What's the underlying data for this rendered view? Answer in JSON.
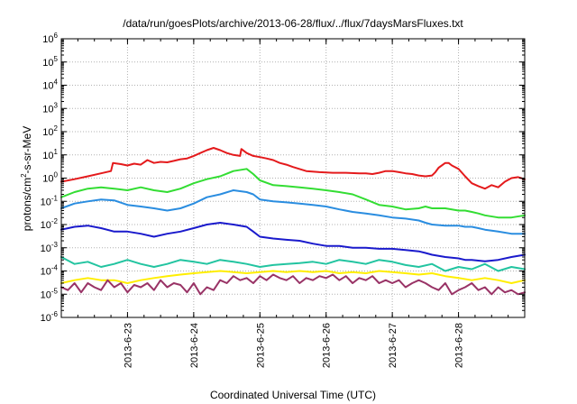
{
  "chart_data": {
    "type": "line",
    "title": "/data/run/goesPlots/archive/2013-06-28/flux/../flux/7daysMarsFluxes.txt",
    "xlabel": "Coordinated Universal Time (UTC)",
    "ylabel": "protons/cm²-s-sr-MeV",
    "ylabel_base": "protons/cm",
    "ylabel_sup": "2",
    "ylabel_rest": "-s-sr-MeV",
    "x_start": "2013-06-22 00:00",
    "xlim_days": [
      0,
      7
    ],
    "yscale": "log",
    "ylim": [
      1e-06,
      1000000.0
    ],
    "y_ticks": [
      {
        "base": "10",
        "exp": "-6",
        "value": -6
      },
      {
        "base": "10",
        "exp": "-5",
        "value": -5
      },
      {
        "base": "10",
        "exp": "-4",
        "value": -4
      },
      {
        "base": "10",
        "exp": "-3",
        "value": -3
      },
      {
        "base": "10",
        "exp": "-2",
        "value": -2
      },
      {
        "base": "10",
        "exp": "-1",
        "value": -1
      },
      {
        "base": "10",
        "exp": "0",
        "value": 0
      },
      {
        "base": "10",
        "exp": "1",
        "value": 1
      },
      {
        "base": "10",
        "exp": "2",
        "value": 2
      },
      {
        "base": "10",
        "exp": "3",
        "value": 3
      },
      {
        "base": "10",
        "exp": "4",
        "value": 4
      },
      {
        "base": "10",
        "exp": "5",
        "value": 5
      },
      {
        "base": "10",
        "exp": "6",
        "value": 6
      }
    ],
    "x_ticks": [
      {
        "label": "2013-6-23",
        "day": 1
      },
      {
        "label": "2013-6-24",
        "day": 2
      },
      {
        "label": "2013-6-25",
        "day": 3
      },
      {
        "label": "2013-6-26",
        "day": 4
      },
      {
        "label": "2013-6-27",
        "day": 5
      },
      {
        "label": "2013-6-28",
        "day": 6
      }
    ],
    "grid": true,
    "legend": "none",
    "series": [
      {
        "color": "#e41a1c",
        "x": [
          0,
          0.2,
          0.4,
          0.6,
          0.75,
          0.78,
          0.9,
          1.0,
          1.1,
          1.2,
          1.3,
          1.4,
          1.5,
          1.6,
          1.7,
          1.8,
          1.9,
          2.0,
          2.1,
          2.2,
          2.3,
          2.4,
          2.5,
          2.6,
          2.7,
          2.72,
          2.8,
          2.9,
          3.0,
          3.1,
          3.2,
          3.3,
          3.4,
          3.5,
          3.7,
          3.9,
          4.1,
          4.3,
          4.5,
          4.6,
          4.7,
          4.8,
          4.9,
          5.0,
          5.1,
          5.2,
          5.3,
          5.4,
          5.5,
          5.6,
          5.65,
          5.7,
          5.8,
          5.85,
          5.9,
          6.0,
          6.1,
          6.2,
          6.3,
          6.4,
          6.5,
          6.6,
          6.7,
          6.8,
          6.9,
          7.0
        ],
        "y": [
          0.7,
          0.9,
          1.2,
          1.6,
          2.0,
          4.5,
          4.0,
          3.5,
          4.2,
          3.8,
          6.0,
          4.5,
          5.0,
          4.8,
          5.5,
          6.5,
          7.0,
          9.0,
          12,
          16,
          20,
          16,
          12,
          10,
          9,
          18,
          12,
          9,
          8,
          7,
          6,
          4.5,
          3.8,
          3.0,
          2.0,
          1.8,
          1.7,
          1.7,
          1.6,
          1.6,
          1.5,
          1.7,
          2.0,
          2.0,
          1.8,
          1.6,
          1.5,
          1.3,
          1.2,
          1.3,
          1.8,
          2.8,
          4.5,
          4.5,
          3.5,
          2.5,
          1.2,
          0.6,
          0.45,
          0.35,
          0.5,
          0.4,
          0.7,
          1.0,
          1.1,
          0.9
        ]
      },
      {
        "color": "#33dd33",
        "x": [
          0,
          0.2,
          0.4,
          0.6,
          0.8,
          1.0,
          1.2,
          1.4,
          1.6,
          1.8,
          2.0,
          2.2,
          2.4,
          2.6,
          2.8,
          2.9,
          3.0,
          3.2,
          3.4,
          3.6,
          3.8,
          4.0,
          4.2,
          4.4,
          4.6,
          4.8,
          5.0,
          5.2,
          5.4,
          5.5,
          5.6,
          5.8,
          6.0,
          6.1,
          6.2,
          6.3,
          6.4,
          6.6,
          6.8,
          7.0
        ],
        "y": [
          0.15,
          0.25,
          0.35,
          0.4,
          0.35,
          0.3,
          0.4,
          0.3,
          0.25,
          0.35,
          0.6,
          0.9,
          1.2,
          2.0,
          2.5,
          1.5,
          0.8,
          0.5,
          0.45,
          0.4,
          0.35,
          0.3,
          0.25,
          0.2,
          0.12,
          0.07,
          0.06,
          0.045,
          0.05,
          0.06,
          0.05,
          0.05,
          0.04,
          0.04,
          0.035,
          0.03,
          0.025,
          0.02,
          0.02,
          0.025
        ]
      },
      {
        "color": "#2a8de0",
        "x": [
          0,
          0.2,
          0.4,
          0.6,
          0.8,
          1.0,
          1.2,
          1.4,
          1.6,
          1.8,
          2.0,
          2.2,
          2.4,
          2.6,
          2.8,
          2.9,
          3.0,
          3.2,
          3.4,
          3.6,
          3.8,
          4.0,
          4.2,
          4.4,
          4.6,
          4.8,
          5.0,
          5.2,
          5.4,
          5.5,
          5.6,
          5.8,
          6.0,
          6.1,
          6.2,
          6.3,
          6.4,
          6.6,
          6.8,
          7.0
        ],
        "y": [
          0.05,
          0.08,
          0.1,
          0.12,
          0.11,
          0.07,
          0.06,
          0.05,
          0.04,
          0.05,
          0.08,
          0.15,
          0.2,
          0.3,
          0.25,
          0.2,
          0.12,
          0.1,
          0.09,
          0.08,
          0.07,
          0.06,
          0.045,
          0.035,
          0.03,
          0.025,
          0.02,
          0.018,
          0.015,
          0.012,
          0.01,
          0.009,
          0.009,
          0.008,
          0.008,
          0.007,
          0.006,
          0.005,
          0.004,
          0.004
        ]
      },
      {
        "color": "#1a1acc",
        "x": [
          0,
          0.2,
          0.4,
          0.6,
          0.8,
          1.0,
          1.2,
          1.4,
          1.6,
          1.8,
          2.0,
          2.2,
          2.4,
          2.6,
          2.8,
          2.9,
          3.0,
          3.2,
          3.4,
          3.6,
          3.8,
          4.0,
          4.2,
          4.4,
          4.6,
          4.8,
          5.0,
          5.2,
          5.4,
          5.5,
          5.6,
          5.8,
          6.0,
          6.1,
          6.2,
          6.3,
          6.4,
          6.6,
          6.8,
          7.0
        ],
        "y": [
          0.006,
          0.008,
          0.009,
          0.007,
          0.005,
          0.005,
          0.004,
          0.003,
          0.004,
          0.005,
          0.007,
          0.01,
          0.012,
          0.01,
          0.008,
          0.005,
          0.003,
          0.0025,
          0.0022,
          0.002,
          0.0015,
          0.0012,
          0.0012,
          0.001,
          0.001,
          0.0009,
          0.0009,
          0.0008,
          0.0007,
          0.0006,
          0.0005,
          0.0004,
          0.00035,
          0.0003,
          0.0003,
          0.00028,
          0.00026,
          0.0003,
          0.0004,
          0.0005
        ]
      },
      {
        "color": "#22c4a0",
        "x": [
          0,
          0.2,
          0.4,
          0.6,
          0.8,
          1.0,
          1.2,
          1.4,
          1.6,
          1.8,
          2.0,
          2.2,
          2.4,
          2.6,
          2.8,
          3.0,
          3.2,
          3.4,
          3.6,
          3.8,
          4.0,
          4.2,
          4.4,
          4.6,
          4.8,
          5.0,
          5.2,
          5.4,
          5.6,
          5.8,
          6.0,
          6.2,
          6.4,
          6.6,
          6.8,
          7.0
        ],
        "y": [
          0.0004,
          0.0002,
          0.00025,
          0.00015,
          0.0002,
          0.0003,
          0.0002,
          0.00015,
          0.0002,
          0.0003,
          0.00025,
          0.0002,
          0.0003,
          0.00025,
          0.0002,
          0.00015,
          0.00018,
          0.0002,
          0.00022,
          0.00025,
          0.0002,
          0.0003,
          0.00025,
          0.0002,
          0.0003,
          0.00025,
          0.00018,
          0.00015,
          0.0002,
          0.0001,
          0.00015,
          0.00012,
          0.0002,
          0.0001,
          0.00015,
          0.00012
        ]
      },
      {
        "color": "#ffee00",
        "x": [
          0,
          0.2,
          0.4,
          0.6,
          0.8,
          1.0,
          1.2,
          1.4,
          1.6,
          1.8,
          2.0,
          2.2,
          2.4,
          2.6,
          2.8,
          3.0,
          3.2,
          3.4,
          3.6,
          3.8,
          4.0,
          4.2,
          4.4,
          4.6,
          4.8,
          5.0,
          5.2,
          5.4,
          5.6,
          5.8,
          6.0,
          6.2,
          6.4,
          6.6,
          6.8,
          7.0
        ],
        "y": [
          3e-05,
          4e-05,
          5e-05,
          4e-05,
          4e-05,
          3e-05,
          4e-05,
          5e-05,
          6e-05,
          7e-05,
          8e-05,
          9e-05,
          0.0001,
          9e-05,
          8e-05,
          9e-05,
          0.0001,
          9e-05,
          0.0001,
          9e-05,
          0.0001,
          8e-05,
          9e-05,
          8e-05,
          0.0001,
          9e-05,
          8e-05,
          7e-05,
          8e-05,
          6e-05,
          5e-05,
          4e-05,
          5e-05,
          4e-05,
          3e-05,
          4e-05
        ]
      },
      {
        "color": "#993366",
        "x": [
          0,
          0.1,
          0.2,
          0.3,
          0.4,
          0.5,
          0.6,
          0.7,
          0.8,
          0.9,
          1.0,
          1.1,
          1.2,
          1.3,
          1.4,
          1.5,
          1.6,
          1.7,
          1.8,
          1.9,
          2.0,
          2.1,
          2.2,
          2.3,
          2.4,
          2.5,
          2.6,
          2.7,
          2.8,
          2.9,
          3.0,
          3.1,
          3.2,
          3.3,
          3.4,
          3.5,
          3.6,
          3.7,
          3.8,
          3.9,
          4.0,
          4.1,
          4.2,
          4.3,
          4.4,
          4.5,
          4.6,
          4.7,
          4.8,
          4.9,
          5.0,
          5.1,
          5.2,
          5.3,
          5.4,
          5.5,
          5.6,
          5.7,
          5.8,
          5.9,
          6.0,
          6.1,
          6.2,
          6.3,
          6.4,
          6.5,
          6.6,
          6.7,
          6.8,
          6.9,
          7.0
        ],
        "y": [
          2e-05,
          1.5e-05,
          3e-05,
          1.2e-05,
          3e-05,
          2e-05,
          1.5e-05,
          4e-05,
          2e-05,
          3e-05,
          1.2e-05,
          2.5e-05,
          2e-05,
          3e-05,
          1.5e-05,
          4e-05,
          2e-05,
          3e-05,
          2.5e-05,
          1.2e-05,
          3e-05,
          1e-05,
          2e-05,
          1.5e-05,
          4e-05,
          3e-05,
          6e-05,
          4e-05,
          5e-05,
          3e-05,
          6e-05,
          4e-05,
          7e-05,
          5e-05,
          4e-05,
          6e-05,
          3e-05,
          5e-05,
          4e-05,
          6e-05,
          5e-05,
          7e-05,
          4e-05,
          6e-05,
          3e-05,
          5e-05,
          4e-05,
          6e-05,
          3e-05,
          4e-05,
          3e-05,
          4e-05,
          2e-05,
          3e-05,
          4e-05,
          3e-05,
          2e-05,
          1.5e-05,
          3e-05,
          1e-05,
          1.5e-05,
          2e-05,
          3e-05,
          1.5e-05,
          2e-05,
          1e-05,
          2e-05,
          1.2e-05,
          1.5e-05,
          1e-05,
          1.2e-05
        ]
      }
    ]
  }
}
